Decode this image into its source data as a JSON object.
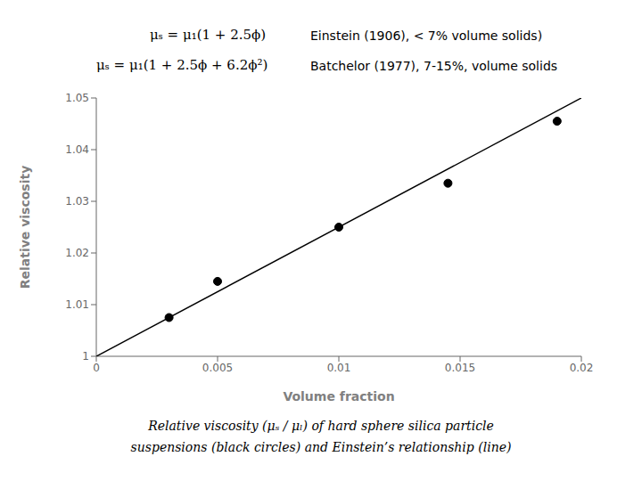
{
  "chart_data": {
    "type": "scatter",
    "xlabel": "Volume fraction",
    "ylabel": "Relative viscosity",
    "xlim": [
      0,
      0.02
    ],
    "ylim": [
      1.0,
      1.05
    ],
    "xticks": [
      0,
      0.005,
      0.01,
      0.015,
      0.02
    ],
    "yticks": [
      1,
      1.01,
      1.02,
      1.03,
      1.04,
      1.05
    ],
    "grid": false,
    "annotations": [
      "μₛ = μ₁(1 + 2.5ϕ)",
      "Einstein (1906), < 7% volume solids)",
      "μₛ = μ₁(1 + 2.5ϕ + 6.2ϕ²)",
      "Batchelor (1977), 7-15%, volume solids",
      "Relative viscosity (μₛ / μₗ) of hard sphere silica particle",
      "suspensions (black circles) and Einstein’s relationship (line)"
    ],
    "series": [
      {
        "type": "line",
        "line_style": "solid",
        "color": "#000000",
        "x": [
          0.0,
          0.02
        ],
        "values": [
          1.0,
          1.05
        ]
      },
      {
        "type": "scatter",
        "marker": "circle",
        "color": "#000000",
        "x": [
          0.003,
          0.005,
          0.01,
          0.0145,
          0.019
        ],
        "values": [
          1.0075,
          1.0145,
          1.025,
          1.0335,
          1.0455
        ]
      }
    ]
  }
}
